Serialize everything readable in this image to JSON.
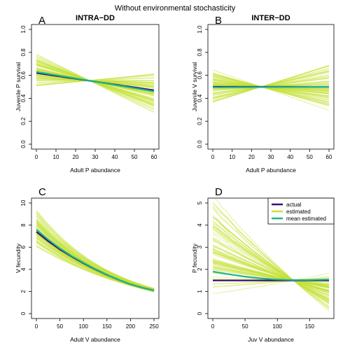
{
  "figure_title": "Without environmental stochasticity",
  "colors": {
    "actual": "#3b0f70",
    "estimated": "#c6e33a",
    "mean_estimated": "#1fb58f"
  },
  "legend": {
    "placement": "top-right of panel D",
    "entries": [
      {
        "label": "actual",
        "color": "#3b0f70"
      },
      {
        "label": "estimated",
        "color": "#c6e33a"
      },
      {
        "label": "mean estimated",
        "color": "#1fb58f"
      }
    ]
  },
  "chart_data": [
    {
      "panel": "A",
      "title": "INTRA−DD",
      "type": "line",
      "xlabel": "Adult P abundance",
      "ylabel": "Juvenile P survival",
      "xlim": [
        0,
        60
      ],
      "ylim": [
        0,
        1
      ],
      "xticks": [
        0,
        10,
        20,
        30,
        40,
        50,
        60
      ],
      "yticks": [
        0.0,
        0.2,
        0.4,
        0.6,
        0.8,
        1.0
      ],
      "xtick_labels": [
        "0",
        "10",
        "20",
        "30",
        "40",
        "50",
        "60"
      ],
      "ytick_labels": [
        "0.0",
        "0.2",
        "0.4",
        "0.6",
        "0.8",
        "1.0"
      ],
      "series": [
        {
          "name": "actual",
          "x": [
            0,
            60
          ],
          "y": [
            0.62,
            0.47
          ]
        },
        {
          "name": "mean estimated",
          "x": [
            0,
            60
          ],
          "y": [
            0.63,
            0.46
          ]
        }
      ],
      "estimated_band": {
        "pivot_x": 27,
        "pivot_y": 0.555,
        "y_at_xmin": [
          0.45,
          0.82
        ],
        "y_at_xmax": [
          0.18,
          0.7
        ],
        "n_lines": 80
      }
    },
    {
      "panel": "B",
      "title": "INTER−DD",
      "type": "line",
      "xlabel": "Adult P abundance",
      "ylabel": "Juvenile V survival",
      "xlim": [
        0,
        60
      ],
      "ylim": [
        0,
        1
      ],
      "xticks": [
        0,
        10,
        20,
        30,
        40,
        50,
        60
      ],
      "yticks": [
        0.0,
        0.2,
        0.4,
        0.6,
        0.8,
        1.0
      ],
      "xtick_labels": [
        "0",
        "10",
        "20",
        "30",
        "40",
        "50",
        "60"
      ],
      "ytick_labels": [
        "0.0",
        "0.2",
        "0.4",
        "0.6",
        "0.8",
        "1.0"
      ],
      "series": [
        {
          "name": "actual",
          "x": [
            0,
            60
          ],
          "y": [
            0.5,
            0.5
          ]
        },
        {
          "name": "mean estimated",
          "x": [
            0,
            60
          ],
          "y": [
            0.495,
            0.5
          ]
        }
      ],
      "estimated_band": {
        "pivot_x": 25,
        "pivot_y": 0.5,
        "y_at_xmin": [
          0.33,
          0.67
        ],
        "y_at_xmax": [
          0.21,
          0.7
        ],
        "n_lines": 80
      }
    },
    {
      "panel": "C",
      "title": "",
      "type": "line",
      "xlabel": "Adult V abundance",
      "ylabel": "V fecundity",
      "xlim": [
        0,
        250
      ],
      "ylim": [
        0,
        10
      ],
      "xticks": [
        0,
        50,
        100,
        150,
        200,
        250
      ],
      "yticks": [
        0,
        2,
        4,
        6,
        8,
        10
      ],
      "xtick_labels": [
        "0",
        "50",
        "100",
        "150",
        "200",
        "250"
      ],
      "ytick_labels": [
        "0",
        "2",
        "4",
        "6",
        "8",
        "10"
      ],
      "series": [
        {
          "name": "actual",
          "x": [
            0,
            25,
            50,
            75,
            100,
            125,
            150,
            175,
            200,
            225,
            250
          ],
          "y": [
            7.4,
            6.55,
            5.8,
            5.15,
            4.55,
            4.0,
            3.5,
            3.05,
            2.65,
            2.35,
            2.1
          ]
        },
        {
          "name": "mean estimated",
          "x": [
            0,
            25,
            50,
            75,
            100,
            125,
            150,
            175,
            200,
            225,
            250
          ],
          "y": [
            7.6,
            6.7,
            5.9,
            5.2,
            4.6,
            4.03,
            3.52,
            3.06,
            2.66,
            2.35,
            2.1
          ]
        }
      ],
      "estimated_band": {
        "pivot_x": 250,
        "pivot_y": 2.1,
        "y_at_xmin": [
          5.7,
          9.6
        ],
        "y_at_xmax": [
          1.95,
          2.3
        ],
        "n_lines": 80
      }
    },
    {
      "panel": "D",
      "title": "",
      "type": "line",
      "xlabel": "Juv V abundance",
      "ylabel": "P fecundity",
      "xlim": [
        0,
        180
      ],
      "ylim": [
        0,
        5
      ],
      "xticks": [
        0,
        50,
        100,
        150
      ],
      "yticks": [
        0,
        1,
        2,
        3,
        4,
        5
      ],
      "xtick_labels": [
        "0",
        "50",
        "100",
        "150"
      ],
      "ytick_labels": [
        "0",
        "1",
        "2",
        "3",
        "4",
        "5"
      ],
      "series": [
        {
          "name": "actual",
          "x": [
            0,
            180
          ],
          "y": [
            1.5,
            1.5
          ]
        },
        {
          "name": "mean estimated",
          "x": [
            0,
            25,
            50,
            75,
            100,
            125,
            150,
            180
          ],
          "y": [
            1.9,
            1.78,
            1.67,
            1.59,
            1.54,
            1.52,
            1.52,
            1.54
          ]
        }
      ],
      "estimated_band": {
        "pivot_x": 125,
        "pivot_y": 1.5,
        "y_at_xmin": [
          0.6,
          5.0
        ],
        "y_at_xmax": [
          1.1,
          2.6
        ],
        "n_lines": 80
      }
    }
  ]
}
